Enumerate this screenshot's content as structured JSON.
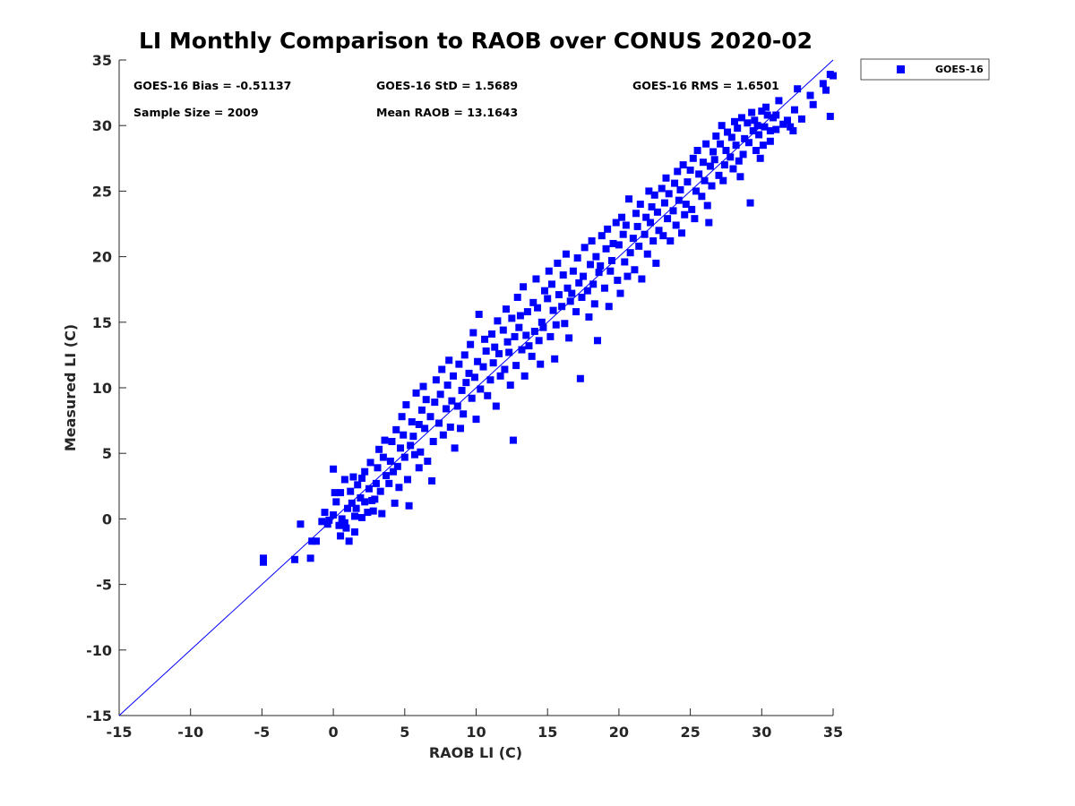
{
  "chart_data": {
    "type": "scatter",
    "title": "LI Monthly Comparison to RAOB over CONUS 2020-02",
    "xlabel": "RAOB LI (C)",
    "ylabel": "Measured LI (C)",
    "xlim": [
      -15,
      35
    ],
    "ylim": [
      -15,
      35
    ],
    "xticks": [
      "-15",
      "-10",
      "-5",
      "0",
      "5",
      "10",
      "15",
      "20",
      "25",
      "30",
      "35"
    ],
    "yticks": [
      "-15",
      "-10",
      "-5",
      "0",
      "5",
      "10",
      "15",
      "20",
      "25",
      "30",
      "35"
    ],
    "grid": false,
    "legend": {
      "position": "outside-top-right",
      "entries": [
        "GOES-16"
      ]
    },
    "reference_line": {
      "name": "1:1",
      "x": [
        -15,
        35
      ],
      "y": [
        -15,
        35
      ],
      "color": "#0000ff"
    },
    "stats": {
      "bias": "GOES-16 Bias = -0.51137",
      "std": "GOES-16 StD = 1.5689",
      "rms": "GOES-16 RMS = 1.6501",
      "sample": "Sample Size = 2009",
      "mean": "Mean RAOB = 13.1643"
    },
    "series": [
      {
        "name": "GOES-16",
        "color": "#0000ff",
        "marker": "square",
        "points": [
          [
            -4.9,
            -3.0
          ],
          [
            -4.9,
            -3.3
          ],
          [
            -2.7,
            -3.1
          ],
          [
            -2.3,
            -0.4
          ],
          [
            -1.6,
            -3.0
          ],
          [
            -1.5,
            -1.7
          ],
          [
            -1.2,
            -1.7
          ],
          [
            -0.8,
            -0.2
          ],
          [
            -0.6,
            0.5
          ],
          [
            -0.3,
            -0.1
          ],
          [
            0.0,
            0.3
          ],
          [
            0.2,
            1.3
          ],
          [
            -0.4,
            -0.4
          ],
          [
            0.5,
            -1.3
          ],
          [
            0.1,
            2.0
          ],
          [
            0.4,
            -0.5
          ],
          [
            0.0,
            3.8
          ],
          [
            0.6,
            0.0
          ],
          [
            0.8,
            -0.3
          ],
          [
            0.5,
            2.0
          ],
          [
            1.0,
            0.8
          ],
          [
            1.3,
            1.2
          ],
          [
            0.8,
            3.0
          ],
          [
            1.5,
            0.2
          ],
          [
            0.9,
            -0.7
          ],
          [
            1.2,
            2.1
          ],
          [
            1.6,
            0.8
          ],
          [
            1.9,
            1.6
          ],
          [
            1.1,
            -1.7
          ],
          [
            1.5,
            -1.0
          ],
          [
            1.7,
            2.6
          ],
          [
            2.0,
            0.1
          ],
          [
            2.2,
            1.3
          ],
          [
            2.0,
            3.1
          ],
          [
            1.4,
            3.2
          ],
          [
            2.4,
            0.5
          ],
          [
            2.5,
            2.3
          ],
          [
            2.7,
            1.4
          ],
          [
            2.2,
            3.6
          ],
          [
            2.6,
            4.3
          ],
          [
            2.8,
            0.6
          ],
          [
            3.0,
            2.7
          ],
          [
            2.9,
            1.5
          ],
          [
            3.1,
            3.9
          ],
          [
            3.3,
            2.1
          ],
          [
            3.5,
            4.7
          ],
          [
            3.4,
            0.4
          ],
          [
            3.2,
            5.3
          ],
          [
            3.7,
            3.3
          ],
          [
            3.6,
            6.0
          ],
          [
            3.9,
            2.7
          ],
          [
            4.0,
            4.4
          ],
          [
            4.2,
            3.6
          ],
          [
            4.1,
            5.9
          ],
          [
            4.5,
            4.0
          ],
          [
            4.4,
            6.8
          ],
          [
            4.6,
            2.4
          ],
          [
            4.7,
            5.4
          ],
          [
            4.3,
            1.2
          ],
          [
            4.9,
            6.4
          ],
          [
            5.0,
            4.7
          ],
          [
            5.2,
            3.0
          ],
          [
            4.8,
            7.8
          ],
          [
            5.1,
            8.7
          ],
          [
            5.4,
            5.6
          ],
          [
            5.3,
            1.0
          ],
          [
            5.5,
            7.4
          ],
          [
            5.7,
            4.9
          ],
          [
            5.8,
            9.6
          ],
          [
            5.6,
            6.3
          ],
          [
            6.0,
            3.9
          ],
          [
            6.0,
            7.2
          ],
          [
            6.2,
            8.3
          ],
          [
            6.1,
            5.1
          ],
          [
            6.4,
            6.9
          ],
          [
            6.5,
            9.1
          ],
          [
            6.6,
            4.4
          ],
          [
            6.3,
            10.1
          ],
          [
            6.8,
            7.8
          ],
          [
            7.0,
            5.9
          ],
          [
            7.1,
            8.9
          ],
          [
            7.2,
            10.6
          ],
          [
            6.9,
            2.9
          ],
          [
            7.4,
            7.3
          ],
          [
            7.5,
            9.5
          ],
          [
            7.7,
            6.4
          ],
          [
            7.6,
            11.4
          ],
          [
            7.9,
            8.4
          ],
          [
            8.0,
            10.2
          ],
          [
            8.2,
            7.0
          ],
          [
            8.1,
            12.1
          ],
          [
            8.3,
            9.0
          ],
          [
            8.5,
            5.4
          ],
          [
            8.4,
            10.9
          ],
          [
            8.7,
            8.6
          ],
          [
            8.8,
            11.8
          ],
          [
            9.0,
            9.8
          ],
          [
            8.9,
            6.9
          ],
          [
            9.2,
            12.5
          ],
          [
            9.3,
            10.4
          ],
          [
            9.1,
            8.0
          ],
          [
            9.5,
            11.1
          ],
          [
            9.6,
            13.3
          ],
          [
            9.7,
            9.2
          ],
          [
            9.8,
            14.2
          ],
          [
            9.9,
            10.8
          ],
          [
            10.0,
            7.6
          ],
          [
            10.1,
            12.0
          ],
          [
            10.3,
            9.9
          ],
          [
            10.2,
            15.6
          ],
          [
            10.5,
            11.6
          ],
          [
            10.6,
            13.7
          ],
          [
            10.8,
            9.4
          ],
          [
            10.7,
            12.8
          ],
          [
            11.0,
            10.6
          ],
          [
            11.1,
            14.1
          ],
          [
            11.2,
            11.9
          ],
          [
            11.4,
            8.6
          ],
          [
            11.3,
            13.1
          ],
          [
            11.5,
            15.1
          ],
          [
            11.7,
            10.9
          ],
          [
            11.6,
            12.6
          ],
          [
            11.9,
            14.4
          ],
          [
            12.0,
            11.4
          ],
          [
            12.1,
            16.0
          ],
          [
            12.2,
            13.5
          ],
          [
            12.4,
            10.2
          ],
          [
            12.3,
            12.7
          ],
          [
            12.5,
            15.3
          ],
          [
            12.7,
            13.9
          ],
          [
            12.6,
            6.0
          ],
          [
            12.8,
            11.7
          ],
          [
            13.0,
            14.6
          ],
          [
            12.9,
            16.9
          ],
          [
            13.2,
            12.9
          ],
          [
            13.1,
            15.5
          ],
          [
            13.4,
            10.9
          ],
          [
            13.5,
            14.0
          ],
          [
            13.3,
            17.7
          ],
          [
            13.7,
            13.2
          ],
          [
            13.6,
            15.8
          ],
          [
            13.9,
            12.4
          ],
          [
            14.0,
            16.5
          ],
          [
            14.1,
            14.3
          ],
          [
            14.2,
            18.3
          ],
          [
            14.4,
            13.6
          ],
          [
            14.3,
            16.1
          ],
          [
            14.6,
            15.0
          ],
          [
            14.5,
            11.8
          ],
          [
            14.8,
            17.4
          ],
          [
            14.7,
            14.6
          ],
          [
            15.0,
            16.8
          ],
          [
            15.1,
            18.9
          ],
          [
            15.2,
            13.9
          ],
          [
            15.4,
            15.9
          ],
          [
            15.3,
            17.9
          ],
          [
            15.6,
            14.8
          ],
          [
            15.5,
            12.2
          ],
          [
            15.8,
            17.1
          ],
          [
            15.7,
            19.5
          ],
          [
            16.0,
            16.2
          ],
          [
            16.1,
            18.6
          ],
          [
            16.2,
            14.9
          ],
          [
            16.4,
            17.6
          ],
          [
            16.3,
            20.2
          ],
          [
            16.6,
            16.6
          ],
          [
            16.5,
            13.8
          ],
          [
            16.8,
            18.9
          ],
          [
            16.7,
            17.2
          ],
          [
            17.0,
            15.8
          ],
          [
            17.1,
            19.9
          ],
          [
            17.2,
            18.0
          ],
          [
            17.4,
            16.9
          ],
          [
            17.3,
            10.7
          ],
          [
            17.6,
            20.7
          ],
          [
            17.5,
            18.5
          ],
          [
            17.8,
            17.4
          ],
          [
            17.9,
            15.4
          ],
          [
            18.0,
            19.4
          ],
          [
            18.1,
            21.2
          ],
          [
            18.2,
            17.9
          ],
          [
            18.4,
            20.0
          ],
          [
            18.3,
            16.4
          ],
          [
            18.6,
            18.8
          ],
          [
            18.5,
            13.6
          ],
          [
            18.8,
            21.6
          ],
          [
            18.7,
            19.3
          ],
          [
            19.0,
            17.6
          ],
          [
            19.1,
            20.6
          ],
          [
            19.2,
            22.1
          ],
          [
            19.4,
            18.9
          ],
          [
            19.3,
            16.2
          ],
          [
            19.6,
            21.0
          ],
          [
            19.5,
            19.7
          ],
          [
            19.8,
            22.6
          ],
          [
            19.9,
            18.2
          ],
          [
            20.0,
            20.9
          ],
          [
            20.1,
            17.2
          ],
          [
            20.2,
            23.0
          ],
          [
            20.4,
            19.6
          ],
          [
            20.3,
            21.7
          ],
          [
            20.6,
            18.5
          ],
          [
            20.5,
            22.4
          ],
          [
            20.8,
            20.3
          ],
          [
            20.7,
            24.4
          ],
          [
            21.0,
            21.4
          ],
          [
            21.1,
            19.0
          ],
          [
            21.2,
            23.3
          ],
          [
            21.4,
            20.8
          ],
          [
            21.3,
            22.3
          ],
          [
            21.6,
            18.3
          ],
          [
            21.5,
            24.0
          ],
          [
            21.8,
            21.7
          ],
          [
            21.9,
            23.0
          ],
          [
            22.0,
            20.2
          ],
          [
            22.1,
            25.0
          ],
          [
            22.2,
            22.6
          ],
          [
            22.4,
            21.2
          ],
          [
            22.3,
            23.8
          ],
          [
            22.6,
            19.5
          ],
          [
            22.5,
            24.7
          ],
          [
            22.8,
            22.0
          ],
          [
            22.7,
            23.4
          ],
          [
            23.0,
            25.2
          ],
          [
            23.1,
            21.6
          ],
          [
            23.2,
            24.1
          ],
          [
            23.4,
            22.9
          ],
          [
            23.3,
            26.0
          ],
          [
            23.6,
            21.2
          ],
          [
            23.5,
            24.8
          ],
          [
            23.8,
            23.5
          ],
          [
            23.9,
            25.6
          ],
          [
            24.0,
            22.4
          ],
          [
            24.1,
            26.5
          ],
          [
            24.2,
            24.3
          ],
          [
            24.4,
            21.8
          ],
          [
            24.3,
            25.1
          ],
          [
            24.6,
            23.2
          ],
          [
            24.5,
            27.0
          ],
          [
            24.8,
            25.7
          ],
          [
            24.7,
            24.0
          ],
          [
            25.0,
            26.6
          ],
          [
            25.1,
            23.6
          ],
          [
            25.2,
            27.5
          ],
          [
            25.4,
            25.0
          ],
          [
            25.3,
            22.9
          ],
          [
            25.6,
            26.3
          ],
          [
            25.5,
            28.1
          ],
          [
            25.8,
            24.6
          ],
          [
            25.9,
            27.2
          ],
          [
            26.0,
            25.8
          ],
          [
            26.1,
            28.6
          ],
          [
            26.2,
            23.9
          ],
          [
            26.4,
            26.9
          ],
          [
            26.3,
            22.6
          ],
          [
            26.6,
            28.0
          ],
          [
            26.5,
            25.4
          ],
          [
            26.8,
            29.2
          ],
          [
            26.7,
            27.4
          ],
          [
            27.0,
            26.2
          ],
          [
            27.1,
            28.6
          ],
          [
            27.2,
            30.0
          ],
          [
            27.4,
            27.0
          ],
          [
            27.3,
            25.8
          ],
          [
            27.6,
            29.5
          ],
          [
            27.5,
            28.1
          ],
          [
            27.8,
            27.6
          ],
          [
            27.9,
            29.1
          ],
          [
            28.0,
            26.7
          ],
          [
            28.1,
            30.3
          ],
          [
            28.2,
            28.5
          ],
          [
            28.4,
            27.3
          ],
          [
            28.3,
            29.8
          ],
          [
            28.6,
            30.6
          ],
          [
            28.5,
            26.1
          ],
          [
            28.8,
            29.0
          ],
          [
            28.7,
            27.8
          ],
          [
            29.0,
            30.2
          ],
          [
            29.1,
            28.7
          ],
          [
            29.2,
            24.1
          ],
          [
            29.4,
            29.6
          ],
          [
            29.3,
            31.0
          ],
          [
            29.6,
            28.1
          ],
          [
            29.5,
            30.4
          ],
          [
            29.8,
            29.3
          ],
          [
            29.9,
            27.5
          ],
          [
            30.0,
            31.1
          ],
          [
            30.2,
            29.9
          ],
          [
            30.1,
            28.5
          ],
          [
            30.4,
            30.8
          ],
          [
            30.3,
            31.4
          ],
          [
            30.6,
            29.6
          ],
          [
            30.8,
            30.6
          ],
          [
            31.0,
            29.7
          ],
          [
            31.2,
            31.9
          ],
          [
            31.5,
            30.1
          ],
          [
            31.8,
            30.4
          ],
          [
            32.0,
            29.9
          ],
          [
            32.3,
            31.2
          ],
          [
            32.5,
            32.8
          ],
          [
            32.8,
            30.5
          ],
          [
            33.4,
            32.3
          ],
          [
            33.6,
            31.6
          ],
          [
            34.3,
            33.2
          ],
          [
            34.5,
            32.7
          ],
          [
            34.8,
            33.9
          ],
          [
            35.0,
            33.8
          ],
          [
            34.8,
            30.7
          ],
          [
            32.2,
            29.6
          ],
          [
            31.0,
            30.8
          ],
          [
            30.6,
            28.8
          ],
          [
            29.7,
            30.0
          ]
        ]
      }
    ]
  }
}
